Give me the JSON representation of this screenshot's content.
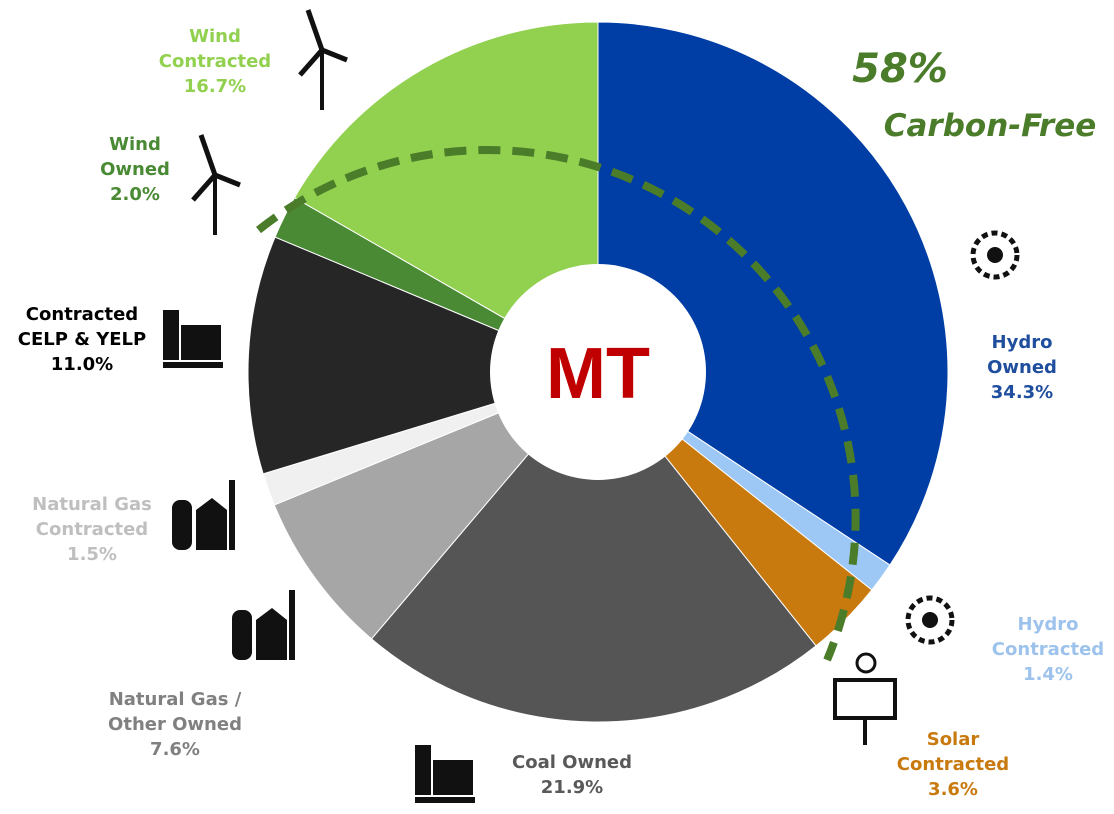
{
  "chart_data": {
    "type": "pie",
    "center_label": "MT",
    "annotations": [
      "58%",
      "Carbon-Free"
    ],
    "categories": [
      "Hydro Owned",
      "Hydro\nContracted",
      "Solar\nContracted",
      "Coal Owned",
      "Natural Gas /\nOther Owned",
      "Natural Gas\nContracted",
      "Contracted\nCELP & YELP",
      "Wind\nOwned",
      "Wind\nContracted"
    ],
    "values": [
      34.3,
      1.4,
      3.6,
      21.9,
      7.6,
      1.5,
      11.0,
      2.0,
      16.7
    ],
    "value_labels": [
      "34.3%",
      "1.4%",
      "3.6%",
      "21.9%",
      "7.6%",
      "1.5%",
      "11.0%",
      "2.0%",
      "16.7%"
    ],
    "colors": [
      "#003da5",
      "#9dc8f5",
      "#c87a0e",
      "#555555",
      "#a6a6a6",
      "#f0f0f0",
      "#262626",
      "#4a8a34",
      "#92d050"
    ],
    "label_colors": [
      "#1f4e9f",
      "#9dc3ec",
      "#c87a0e",
      "#595959",
      "#808080",
      "#bfbfbf",
      "#000000",
      "#4a8a34",
      "#92d050"
    ]
  }
}
